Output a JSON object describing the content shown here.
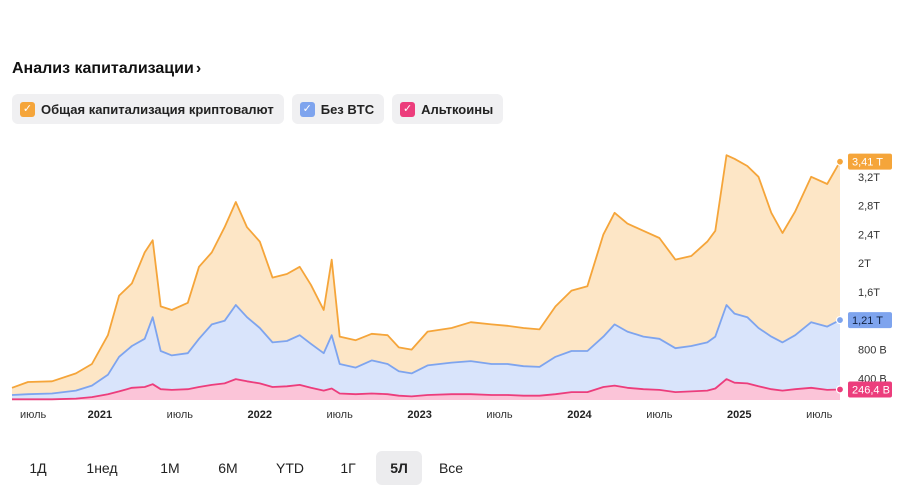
{
  "header": {
    "title": "Анализ капитализации",
    "chevron": "›"
  },
  "legend": [
    {
      "label": "Общая капитализация криптовалют",
      "color": "#f5a53a",
      "checked": true
    },
    {
      "label": "Без BTC",
      "color": "#7ea4ee",
      "checked": true
    },
    {
      "label": "Альткоины",
      "color": "#ec3d7c",
      "checked": true
    }
  ],
  "ranges": {
    "items": [
      "1Д",
      "1нед",
      "1М",
      "6М",
      "YTD",
      "1Г",
      "5Л",
      "Все"
    ],
    "active": "5Л"
  },
  "chart_data": {
    "type": "area",
    "x_ticks": [
      {
        "label": "июль",
        "bold": false,
        "t": 2020.5
      },
      {
        "label": "2021",
        "bold": true,
        "t": 2021.0
      },
      {
        "label": "июль",
        "bold": false,
        "t": 2021.5
      },
      {
        "label": "2022",
        "bold": true,
        "t": 2022.0
      },
      {
        "label": "июль",
        "bold": false,
        "t": 2022.5
      },
      {
        "label": "2023",
        "bold": true,
        "t": 2023.0
      },
      {
        "label": "июль",
        "bold": false,
        "t": 2023.5
      },
      {
        "label": "2024",
        "bold": true,
        "t": 2024.0
      },
      {
        "label": "июль",
        "bold": false,
        "t": 2024.5
      },
      {
        "label": "2025",
        "bold": true,
        "t": 2025.0
      },
      {
        "label": "июль",
        "bold": false,
        "t": 2025.5
      }
    ],
    "y_ticks": [
      "400 B",
      "800 B",
      "1,2T",
      "1,6T",
      "2T",
      "2,4T",
      "2,8T",
      "3,2T"
    ],
    "y_tick_values": [
      0.4,
      0.8,
      1.2,
      1.6,
      2.0,
      2.4,
      2.8,
      3.2
    ],
    "ylim": [
      0.1,
      3.6
    ],
    "value_unit": "trillion USD",
    "series": [
      {
        "name": "Общая капитализация криптовалют",
        "color": "#f5a53a",
        "fill": "#fde6c6",
        "last_label": "3,41 T",
        "points": [
          [
            2020.45,
            0.27
          ],
          [
            2020.55,
            0.35
          ],
          [
            2020.7,
            0.36
          ],
          [
            2020.85,
            0.47
          ],
          [
            2020.95,
            0.6
          ],
          [
            2021.05,
            1.0
          ],
          [
            2021.12,
            1.55
          ],
          [
            2021.2,
            1.72
          ],
          [
            2021.28,
            2.15
          ],
          [
            2021.33,
            2.32
          ],
          [
            2021.38,
            1.4
          ],
          [
            2021.45,
            1.35
          ],
          [
            2021.55,
            1.45
          ],
          [
            2021.62,
            1.95
          ],
          [
            2021.7,
            2.15
          ],
          [
            2021.78,
            2.5
          ],
          [
            2021.85,
            2.85
          ],
          [
            2021.92,
            2.5
          ],
          [
            2022.0,
            2.3
          ],
          [
            2022.08,
            1.8
          ],
          [
            2022.17,
            1.85
          ],
          [
            2022.25,
            1.95
          ],
          [
            2022.32,
            1.7
          ],
          [
            2022.4,
            1.35
          ],
          [
            2022.45,
            2.05
          ],
          [
            2022.5,
            0.98
          ],
          [
            2022.6,
            0.93
          ],
          [
            2022.7,
            1.02
          ],
          [
            2022.8,
            1.0
          ],
          [
            2022.87,
            0.83
          ],
          [
            2022.95,
            0.8
          ],
          [
            2023.05,
            1.05
          ],
          [
            2023.2,
            1.1
          ],
          [
            2023.32,
            1.18
          ],
          [
            2023.45,
            1.15
          ],
          [
            2023.55,
            1.13
          ],
          [
            2023.65,
            1.1
          ],
          [
            2023.75,
            1.08
          ],
          [
            2023.85,
            1.4
          ],
          [
            2023.95,
            1.62
          ],
          [
            2024.05,
            1.68
          ],
          [
            2024.15,
            2.4
          ],
          [
            2024.22,
            2.7
          ],
          [
            2024.3,
            2.55
          ],
          [
            2024.4,
            2.45
          ],
          [
            2024.5,
            2.35
          ],
          [
            2024.6,
            2.05
          ],
          [
            2024.7,
            2.1
          ],
          [
            2024.8,
            2.3
          ],
          [
            2024.85,
            2.45
          ],
          [
            2024.92,
            3.5
          ],
          [
            2024.97,
            3.45
          ],
          [
            2025.05,
            3.35
          ],
          [
            2025.12,
            3.2
          ],
          [
            2025.2,
            2.7
          ],
          [
            2025.27,
            2.42
          ],
          [
            2025.35,
            2.72
          ],
          [
            2025.45,
            3.2
          ],
          [
            2025.55,
            3.1
          ],
          [
            2025.63,
            3.41
          ]
        ]
      },
      {
        "name": "Без BTC",
        "color": "#7ea4ee",
        "fill": "#d9e4fb",
        "last_label": "1,21 T",
        "points": [
          [
            2020.45,
            0.17
          ],
          [
            2020.55,
            0.18
          ],
          [
            2020.7,
            0.19
          ],
          [
            2020.85,
            0.23
          ],
          [
            2020.95,
            0.3
          ],
          [
            2021.05,
            0.45
          ],
          [
            2021.12,
            0.7
          ],
          [
            2021.2,
            0.85
          ],
          [
            2021.28,
            0.95
          ],
          [
            2021.33,
            1.25
          ],
          [
            2021.38,
            0.78
          ],
          [
            2021.45,
            0.72
          ],
          [
            2021.55,
            0.75
          ],
          [
            2021.62,
            0.95
          ],
          [
            2021.7,
            1.15
          ],
          [
            2021.78,
            1.2
          ],
          [
            2021.85,
            1.42
          ],
          [
            2021.92,
            1.25
          ],
          [
            2022.0,
            1.1
          ],
          [
            2022.08,
            0.9
          ],
          [
            2022.17,
            0.92
          ],
          [
            2022.25,
            1.0
          ],
          [
            2022.32,
            0.88
          ],
          [
            2022.4,
            0.75
          ],
          [
            2022.45,
            1.0
          ],
          [
            2022.5,
            0.6
          ],
          [
            2022.6,
            0.55
          ],
          [
            2022.7,
            0.65
          ],
          [
            2022.8,
            0.6
          ],
          [
            2022.87,
            0.5
          ],
          [
            2022.95,
            0.47
          ],
          [
            2023.05,
            0.58
          ],
          [
            2023.2,
            0.62
          ],
          [
            2023.32,
            0.64
          ],
          [
            2023.45,
            0.6
          ],
          [
            2023.55,
            0.6
          ],
          [
            2023.65,
            0.57
          ],
          [
            2023.75,
            0.56
          ],
          [
            2023.85,
            0.7
          ],
          [
            2023.95,
            0.78
          ],
          [
            2024.05,
            0.78
          ],
          [
            2024.15,
            0.98
          ],
          [
            2024.22,
            1.15
          ],
          [
            2024.3,
            1.05
          ],
          [
            2024.4,
            0.98
          ],
          [
            2024.5,
            0.95
          ],
          [
            2024.6,
            0.82
          ],
          [
            2024.7,
            0.85
          ],
          [
            2024.8,
            0.9
          ],
          [
            2024.85,
            0.98
          ],
          [
            2024.92,
            1.42
          ],
          [
            2024.97,
            1.3
          ],
          [
            2025.05,
            1.25
          ],
          [
            2025.12,
            1.1
          ],
          [
            2025.2,
            0.98
          ],
          [
            2025.27,
            0.9
          ],
          [
            2025.35,
            1.0
          ],
          [
            2025.45,
            1.18
          ],
          [
            2025.55,
            1.12
          ],
          [
            2025.63,
            1.21
          ]
        ]
      },
      {
        "name": "Альткоины",
        "color": "#ec3d7c",
        "fill": "#fbc4d8",
        "last_label": "246,4 B",
        "points": [
          [
            2020.45,
            0.11
          ],
          [
            2020.55,
            0.11
          ],
          [
            2020.7,
            0.11
          ],
          [
            2020.85,
            0.12
          ],
          [
            2020.95,
            0.14
          ],
          [
            2021.05,
            0.18
          ],
          [
            2021.12,
            0.22
          ],
          [
            2021.2,
            0.27
          ],
          [
            2021.28,
            0.28
          ],
          [
            2021.33,
            0.32
          ],
          [
            2021.38,
            0.25
          ],
          [
            2021.45,
            0.24
          ],
          [
            2021.55,
            0.25
          ],
          [
            2021.62,
            0.28
          ],
          [
            2021.7,
            0.31
          ],
          [
            2021.78,
            0.33
          ],
          [
            2021.85,
            0.39
          ],
          [
            2021.92,
            0.36
          ],
          [
            2022.0,
            0.33
          ],
          [
            2022.08,
            0.28
          ],
          [
            2022.17,
            0.29
          ],
          [
            2022.25,
            0.31
          ],
          [
            2022.32,
            0.27
          ],
          [
            2022.4,
            0.23
          ],
          [
            2022.45,
            0.26
          ],
          [
            2022.5,
            0.19
          ],
          [
            2022.6,
            0.18
          ],
          [
            2022.7,
            0.19
          ],
          [
            2022.8,
            0.18
          ],
          [
            2022.87,
            0.16
          ],
          [
            2022.95,
            0.15
          ],
          [
            2023.05,
            0.17
          ],
          [
            2023.2,
            0.18
          ],
          [
            2023.32,
            0.18
          ],
          [
            2023.45,
            0.17
          ],
          [
            2023.55,
            0.17
          ],
          [
            2023.65,
            0.16
          ],
          [
            2023.75,
            0.16
          ],
          [
            2023.85,
            0.18
          ],
          [
            2023.95,
            0.21
          ],
          [
            2024.05,
            0.21
          ],
          [
            2024.15,
            0.28
          ],
          [
            2024.22,
            0.3
          ],
          [
            2024.3,
            0.27
          ],
          [
            2024.4,
            0.25
          ],
          [
            2024.5,
            0.24
          ],
          [
            2024.6,
            0.21
          ],
          [
            2024.7,
            0.22
          ],
          [
            2024.8,
            0.23
          ],
          [
            2024.85,
            0.26
          ],
          [
            2024.92,
            0.39
          ],
          [
            2024.97,
            0.34
          ],
          [
            2025.05,
            0.33
          ],
          [
            2025.12,
            0.29
          ],
          [
            2025.2,
            0.25
          ],
          [
            2025.27,
            0.23
          ],
          [
            2025.35,
            0.25
          ],
          [
            2025.45,
            0.27
          ],
          [
            2025.55,
            0.24
          ],
          [
            2025.63,
            0.246
          ]
        ]
      }
    ]
  }
}
